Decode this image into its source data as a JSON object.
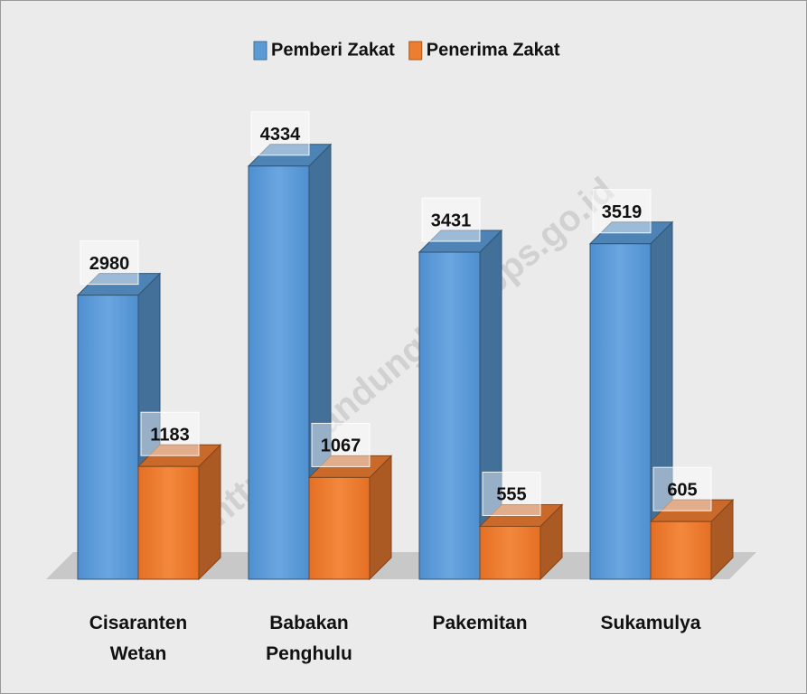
{
  "chart_data": {
    "type": "bar3d",
    "categories": [
      "Cisaranten Wetan",
      "Babakan Penghulu",
      "Pakemitan",
      "Sukamulya"
    ],
    "series": [
      {
        "name": "Pemberi Zakat",
        "color": "#5b9bd5",
        "values": [
          2980,
          4334,
          3431,
          3519
        ]
      },
      {
        "name": "Penerima Zakat",
        "color": "#ed7d31",
        "values": [
          1183,
          1067,
          555,
          605
        ]
      }
    ],
    "legend": "top",
    "watermark": "https://bandungkota.bps.go.id"
  }
}
